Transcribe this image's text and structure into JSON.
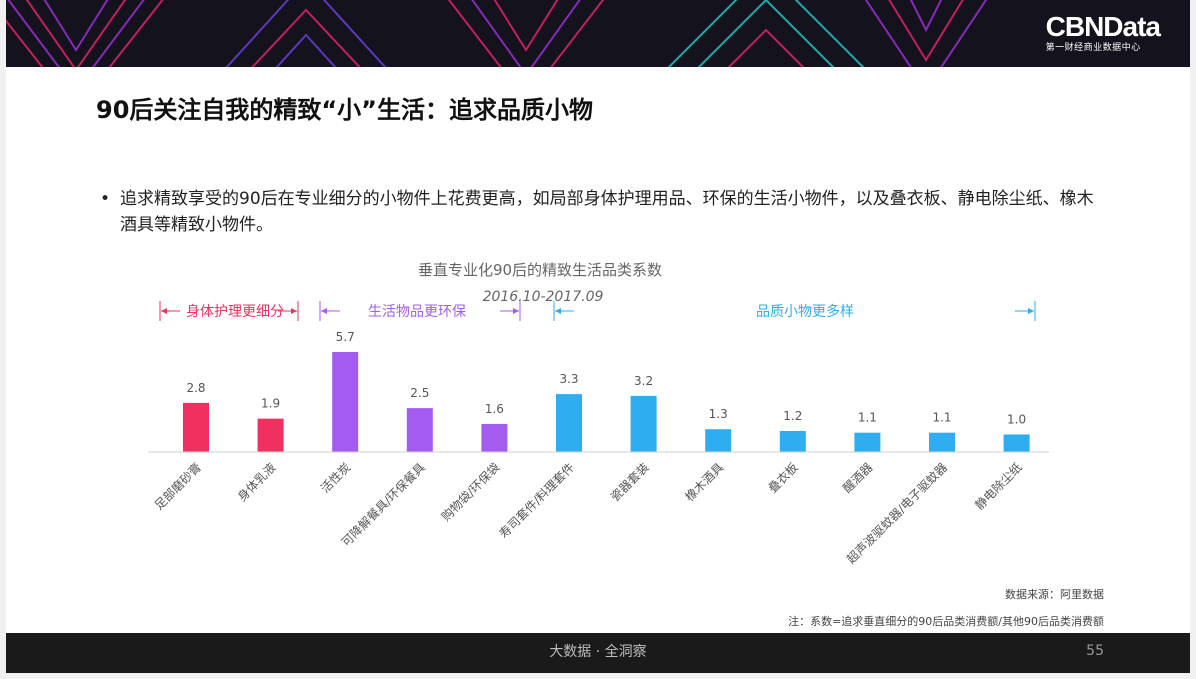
{
  "header": {
    "brand_name": "CBNData",
    "brand_sub": "第一财经商业数据中心"
  },
  "slide": {
    "title": "90后关注自我的精致“小”生活：追求品质小物",
    "bullet": "追求精致享受的90后在专业细分的小物件上花费更高，如局部身体护理用品、环保的生活小物件，以及叠衣板、静电除尘纸、橡木酒具等精致小物件。"
  },
  "chart_data": {
    "type": "bar",
    "title": "垂直专业化90后的精致生活品类系数",
    "subtitle": "2016.10-2017.09",
    "categories": [
      "足部磨砂膏",
      "身体乳液",
      "活性炭",
      "可降解餐具/环保餐具",
      "购物袋/环保袋",
      "寿司套件/料理套件",
      "瓷器套装",
      "橡木酒具",
      "叠衣板",
      "醒酒器",
      "超声波驱蚊器/电子驱蚊器",
      "静电除尘纸"
    ],
    "values": [
      2.8,
      1.9,
      5.7,
      2.5,
      1.6,
      3.3,
      3.2,
      1.3,
      1.2,
      1.1,
      1.1,
      1.0
    ],
    "value_labels": [
      "2.8",
      "1.9",
      "5.7",
      "2.5",
      "1.6",
      "3.3",
      "3.2",
      "1.3",
      "1.2",
      "1.1",
      "1.1",
      "1.0"
    ],
    "groups": [
      {
        "label": "身体护理更细分",
        "color": "#f0305f",
        "start": 0,
        "end": 1
      },
      {
        "label": "生活物品更环保",
        "color": "#a45cf0",
        "start": 2,
        "end": 4
      },
      {
        "label": "品质小物更多样",
        "color": "#2eaef0",
        "start": 5,
        "end": 11
      }
    ],
    "ylim": [
      0,
      6
    ],
    "grid": false,
    "xlabel": "",
    "ylabel": ""
  },
  "notes": {
    "source": "数据来源：阿里数据",
    "formula": "注：系数=追求垂直细分的90后品类消费额/其他90后品类消费额"
  },
  "footer": {
    "tagline": "大数据 · 全洞察",
    "page_number": "55"
  }
}
